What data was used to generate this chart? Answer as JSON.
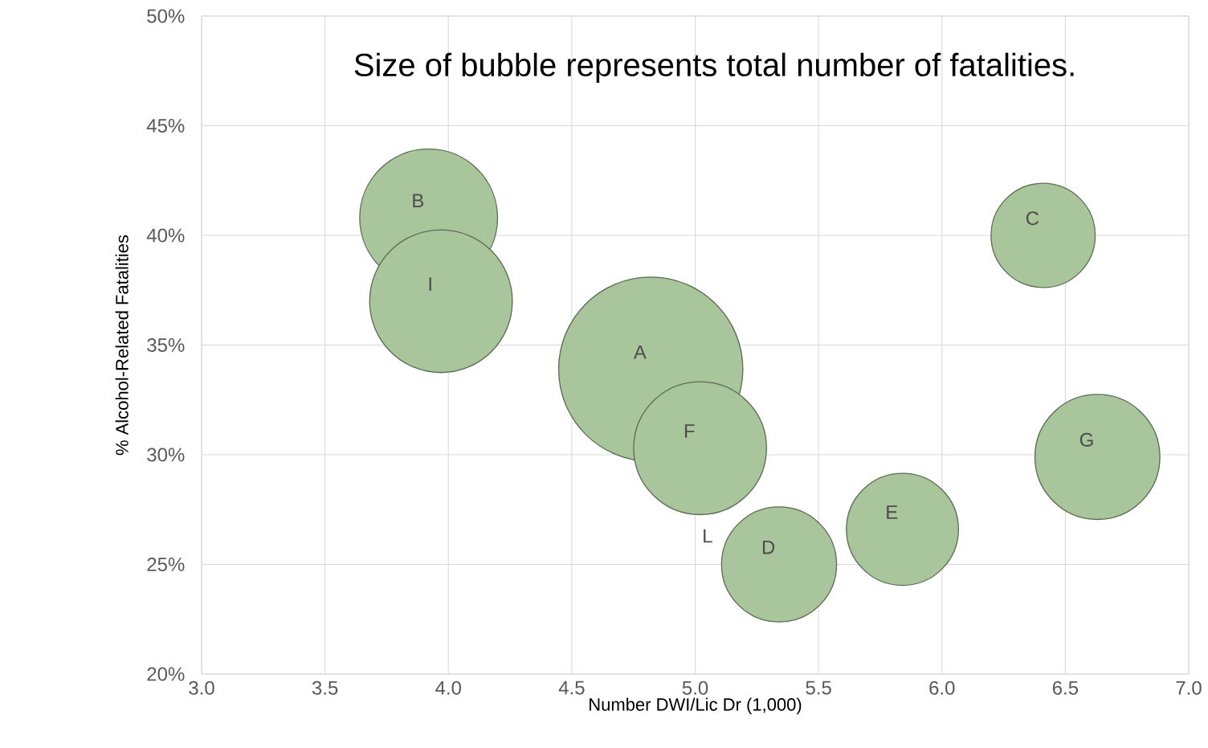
{
  "chart_data": {
    "type": "bubble",
    "xlabel": "Number DWI/Lic Dr (1,000)",
    "ylabel": "% Alcohol-Related Fatalities",
    "x": [
      4.82,
      3.92,
      6.41,
      5.34,
      5.84,
      5.02,
      6.63,
      3.97
    ],
    "series": [
      {
        "color": "#a9c59b",
        "values": [
          33.9,
          40.8,
          40.0,
          25.0,
          26.6,
          30.3,
          29.9,
          37.0
        ],
        "sizes": [
          1,
          0.56,
          0.32,
          0.39,
          0.37,
          0.52,
          0.46,
          0.6
        ]
      }
    ],
    "xlim": [
      3.0,
      7.0
    ],
    "ylim": [
      20,
      50
    ],
    "xticks": [
      {
        "value": 3.0,
        "label": "3.0"
      },
      {
        "value": 3.5,
        "label": "3.5"
      },
      {
        "value": 4.0,
        "label": "4.0"
      },
      {
        "value": 4.5,
        "label": "4.5"
      },
      {
        "value": 5.0,
        "label": "5.0"
      },
      {
        "value": 5.5,
        "label": "5.5"
      },
      {
        "value": 6.0,
        "label": "6.0"
      },
      {
        "value": 6.5,
        "label": "6.5"
      },
      {
        "value": 7.0,
        "label": "7.0"
      }
    ],
    "yticks": [
      {
        "value": 20,
        "label": "20%"
      },
      {
        "value": 25,
        "label": "25%"
      },
      {
        "value": 30,
        "label": "30%"
      },
      {
        "value": 35,
        "label": "35%"
      },
      {
        "value": 40,
        "label": "40%"
      },
      {
        "value": 45,
        "label": "45%"
      },
      {
        "value": 50,
        "label": "50%"
      }
    ],
    "grid": true,
    "annotations": [
      "Size of bubble represents total number of fatalities.",
      "L",
      {
        "text": "A",
        "x": 4.82,
        "y": 33.9
      },
      {
        "text": "B",
        "x": 3.92,
        "y": 40.8
      },
      {
        "text": "C",
        "x": 6.41,
        "y": 40.0
      },
      {
        "text": "D",
        "x": 5.34,
        "y": 25.0
      },
      {
        "text": "E",
        "x": 5.84,
        "y": 26.6
      },
      {
        "text": "F",
        "x": 5.02,
        "y": 30.3
      },
      {
        "text": "G",
        "x": 6.63,
        "y": 29.9
      },
      {
        "text": "I",
        "x": 3.97,
        "y": 37.0
      }
    ]
  }
}
